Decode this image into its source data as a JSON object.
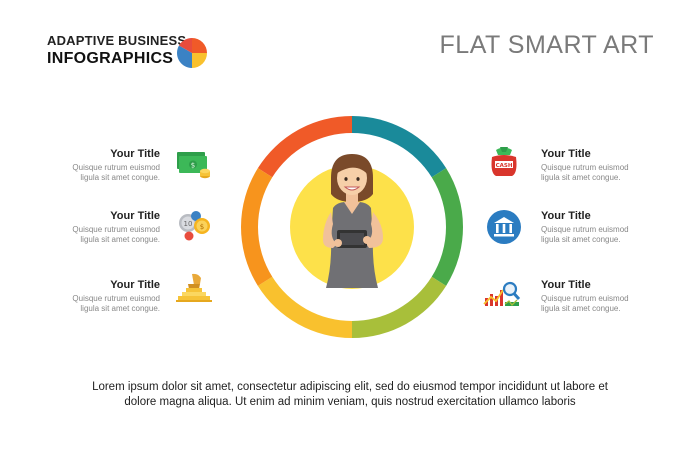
{
  "header": {
    "brand_line1": "ADAPTIVE BUSINESS",
    "brand_line2": "INFOGRAPHICS",
    "slide_title": "FLAT SMART ART"
  },
  "colors": {
    "seg_red": "#f05a28",
    "seg_teal": "#1a8a9a",
    "seg_green": "#4aaa4a",
    "seg_lime": "#a8bf3a",
    "seg_yellow": "#f9c12e",
    "seg_orange": "#f7941d",
    "center_yellow": "#fde14a"
  },
  "left_items": [
    {
      "title": "Your Title",
      "desc1": "Quisque rutrum euismod",
      "desc2": "ligula sit amet congue.",
      "icon": "money-stack-icon"
    },
    {
      "title": "Your Title",
      "desc1": "Quisque rutrum euismod",
      "desc2": "ligula sit amet congue.",
      "icon": "coins-icon"
    },
    {
      "title": "Your Title",
      "desc1": "Quisque rutrum euismod",
      "desc2": "ligula sit amet congue.",
      "icon": "hand-coins-icon"
    }
  ],
  "right_items": [
    {
      "title": "Your Title",
      "desc1": "Quisque rutrum euismod",
      "desc2": "ligula sit amet congue.",
      "icon": "cash-bag-icon",
      "badge": "CASH"
    },
    {
      "title": "Your Title",
      "desc1": "Quisque rutrum euismod",
      "desc2": "ligula sit amet congue.",
      "icon": "bank-icon"
    },
    {
      "title": "Your Title",
      "desc1": "Quisque rutrum euismod",
      "desc2": "ligula sit amet congue.",
      "icon": "chart-magnifier-icon"
    }
  ],
  "coin_label": "10",
  "footer": {
    "line1": "Lorem ipsum dolor sit amet, consectetur adipiscing elit, sed do eiusmod tempor incididunt ut labore et",
    "line2": "dolore magna aliqua. Ut enim ad minim veniam, quis nostrud exercitation ullamco laboris"
  }
}
